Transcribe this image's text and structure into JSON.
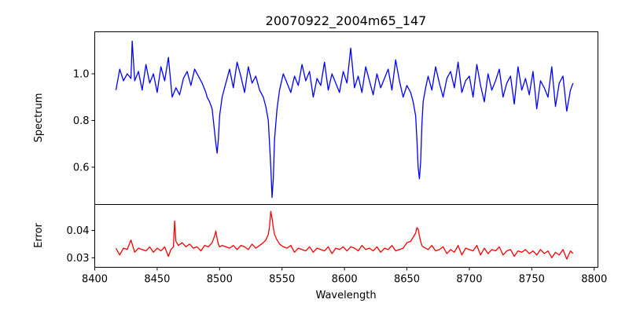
{
  "figure": {
    "title": "20070922_2004m65_147"
  },
  "chart_data": [
    {
      "type": "line",
      "panel": "top",
      "title": "20070922_2004m65_147",
      "xlabel": "",
      "ylabel": "Spectrum",
      "xlim": [
        8400,
        8803
      ],
      "ylim": [
        0.44,
        1.18
      ],
      "yticks": [
        0.6,
        0.8,
        1.0
      ],
      "yticklabels": [
        "0.6",
        "0.8",
        "1.0"
      ],
      "grid": false,
      "series": [
        {
          "color": "#0000ff",
          "x": [
            8417,
            8420,
            8423,
            8426,
            8429,
            8430,
            8432,
            8435,
            8438,
            8441,
            8444,
            8447,
            8450,
            8453,
            8456,
            8459,
            8462,
            8465,
            8468,
            8471,
            8474,
            8477,
            8480,
            8483,
            8486,
            8489,
            8490,
            8492,
            8494,
            8495,
            8496,
            8497,
            8498,
            8499,
            8500,
            8502,
            8505,
            8508,
            8511,
            8514,
            8517,
            8520,
            8523,
            8526,
            8529,
            8532,
            8535,
            8537,
            8539,
            8540,
            8541,
            8542,
            8543,
            8544,
            8546,
            8548,
            8551,
            8554,
            8557,
            8560,
            8563,
            8566,
            8569,
            8572,
            8575,
            8578,
            8581,
            8584,
            8587,
            8590,
            8593,
            8596,
            8599,
            8602,
            8605,
            8608,
            8611,
            8614,
            8617,
            8620,
            8623,
            8626,
            8629,
            8632,
            8635,
            8638,
            8641,
            8644,
            8647,
            8650,
            8653,
            8655,
            8657,
            8658,
            8659,
            8660,
            8661,
            8662,
            8663,
            8665,
            8667,
            8670,
            8673,
            8676,
            8679,
            8682,
            8685,
            8688,
            8691,
            8694,
            8697,
            8700,
            8703,
            8706,
            8709,
            8712,
            8715,
            8718,
            8721,
            8724,
            8727,
            8730,
            8733,
            8736,
            8739,
            8742,
            8745,
            8748,
            8751,
            8754,
            8757,
            8760,
            8763,
            8766,
            8769,
            8772,
            8775,
            8778,
            8781,
            8783
          ],
          "y": [
            0.93,
            1.02,
            0.97,
            1.0,
            0.98,
            1.14,
            0.97,
            1.01,
            0.93,
            1.04,
            0.96,
            1.0,
            0.92,
            1.03,
            0.97,
            1.07,
            0.9,
            0.94,
            0.91,
            0.98,
            1.01,
            0.95,
            1.02,
            0.99,
            0.96,
            0.92,
            0.9,
            0.88,
            0.85,
            0.8,
            0.75,
            0.7,
            0.66,
            0.72,
            0.82,
            0.9,
            0.96,
            1.02,
            0.94,
            1.05,
            0.99,
            0.92,
            1.03,
            0.96,
            0.99,
            0.93,
            0.9,
            0.86,
            0.8,
            0.7,
            0.6,
            0.47,
            0.55,
            0.72,
            0.85,
            0.93,
            1.0,
            0.96,
            0.92,
            0.99,
            0.95,
            1.04,
            0.97,
            1.01,
            0.9,
            0.98,
            0.95,
            1.05,
            0.93,
            1.0,
            0.96,
            0.92,
            1.01,
            0.96,
            1.11,
            0.94,
            0.99,
            0.92,
            1.03,
            0.97,
            0.91,
            1.0,
            0.94,
            0.98,
            1.02,
            0.93,
            1.06,
            0.97,
            0.9,
            0.95,
            0.92,
            0.88,
            0.82,
            0.72,
            0.6,
            0.55,
            0.62,
            0.78,
            0.88,
            0.94,
            0.99,
            0.93,
            1.03,
            0.96,
            0.9,
            0.98,
            1.01,
            0.94,
            1.05,
            0.92,
            0.97,
            0.99,
            0.9,
            1.04,
            0.95,
            0.88,
            1.0,
            0.93,
            0.97,
            1.02,
            0.9,
            0.96,
            0.99,
            0.87,
            1.03,
            0.93,
            0.98,
            0.91,
            1.01,
            0.85,
            0.97,
            0.94,
            0.9,
            1.03,
            0.86,
            0.96,
            0.99,
            0.84,
            0.93,
            0.96
          ]
        }
      ]
    },
    {
      "type": "line",
      "panel": "bottom",
      "xlabel": "Wavelength",
      "ylabel": "Error",
      "xlim": [
        8400,
        8803
      ],
      "ylim": [
        0.0265,
        0.0495
      ],
      "xticks": [
        8400,
        8450,
        8500,
        8550,
        8600,
        8650,
        8700,
        8750,
        8800
      ],
      "xticklabels": [
        "8400",
        "8450",
        "8500",
        "8550",
        "8600",
        "8650",
        "8700",
        "8750",
        "8800"
      ],
      "yticks": [
        0.03,
        0.04
      ],
      "yticklabels": [
        "0.03",
        "0.04"
      ],
      "grid": false,
      "series": [
        {
          "color": "#ff0000",
          "x": [
            8417,
            8420,
            8423,
            8426,
            8429,
            8432,
            8435,
            8438,
            8441,
            8444,
            8447,
            8450,
            8453,
            8456,
            8459,
            8461,
            8463,
            8464,
            8465,
            8467,
            8470,
            8473,
            8476,
            8479,
            8482,
            8485,
            8488,
            8491,
            8494,
            8496,
            8497,
            8498,
            8499,
            8500,
            8502,
            8505,
            8508,
            8511,
            8514,
            8517,
            8520,
            8523,
            8526,
            8529,
            8532,
            8535,
            8537,
            8539,
            8540,
            8541,
            8542,
            8543,
            8544,
            8546,
            8548,
            8551,
            8554,
            8557,
            8560,
            8563,
            8566,
            8569,
            8572,
            8575,
            8578,
            8581,
            8584,
            8587,
            8590,
            8593,
            8596,
            8599,
            8602,
            8605,
            8608,
            8611,
            8614,
            8617,
            8620,
            8623,
            8626,
            8629,
            8632,
            8635,
            8638,
            8641,
            8644,
            8647,
            8650,
            8653,
            8655,
            8657,
            8658,
            8659,
            8660,
            8661,
            8662,
            8663,
            8665,
            8667,
            8670,
            8673,
            8676,
            8679,
            8682,
            8685,
            8688,
            8691,
            8694,
            8697,
            8700,
            8703,
            8706,
            8709,
            8712,
            8715,
            8718,
            8721,
            8724,
            8727,
            8730,
            8733,
            8736,
            8739,
            8742,
            8745,
            8748,
            8751,
            8754,
            8757,
            8760,
            8763,
            8766,
            8769,
            8772,
            8775,
            8778,
            8781,
            8783
          ],
          "y": [
            0.0335,
            0.031,
            0.0335,
            0.033,
            0.0365,
            0.032,
            0.0335,
            0.033,
            0.0325,
            0.034,
            0.032,
            0.0335,
            0.0325,
            0.034,
            0.0305,
            0.033,
            0.034,
            0.0435,
            0.036,
            0.0345,
            0.0355,
            0.034,
            0.035,
            0.0335,
            0.034,
            0.0325,
            0.0345,
            0.034,
            0.0355,
            0.038,
            0.0398,
            0.037,
            0.035,
            0.034,
            0.0345,
            0.034,
            0.0335,
            0.0345,
            0.033,
            0.0345,
            0.034,
            0.033,
            0.035,
            0.0335,
            0.0345,
            0.0355,
            0.0365,
            0.0385,
            0.0415,
            0.047,
            0.0445,
            0.041,
            0.0385,
            0.0365,
            0.035,
            0.034,
            0.0335,
            0.0345,
            0.032,
            0.0335,
            0.033,
            0.0325,
            0.034,
            0.032,
            0.0335,
            0.033,
            0.0325,
            0.034,
            0.0315,
            0.0335,
            0.033,
            0.034,
            0.0325,
            0.034,
            0.0335,
            0.0325,
            0.0345,
            0.033,
            0.0335,
            0.0325,
            0.034,
            0.032,
            0.0335,
            0.033,
            0.0345,
            0.0325,
            0.033,
            0.0335,
            0.0355,
            0.036,
            0.0375,
            0.039,
            0.041,
            0.0405,
            0.038,
            0.036,
            0.0345,
            0.034,
            0.0335,
            0.033,
            0.0345,
            0.0325,
            0.033,
            0.034,
            0.0315,
            0.033,
            0.032,
            0.0345,
            0.031,
            0.0335,
            0.033,
            0.0325,
            0.0345,
            0.031,
            0.0335,
            0.0315,
            0.033,
            0.0325,
            0.034,
            0.031,
            0.0325,
            0.033,
            0.0305,
            0.0325,
            0.032,
            0.033,
            0.0315,
            0.0325,
            0.031,
            0.033,
            0.0315,
            0.0325,
            0.03,
            0.032,
            0.031,
            0.033,
            0.0295,
            0.0325,
            0.0315
          ]
        }
      ]
    }
  ]
}
